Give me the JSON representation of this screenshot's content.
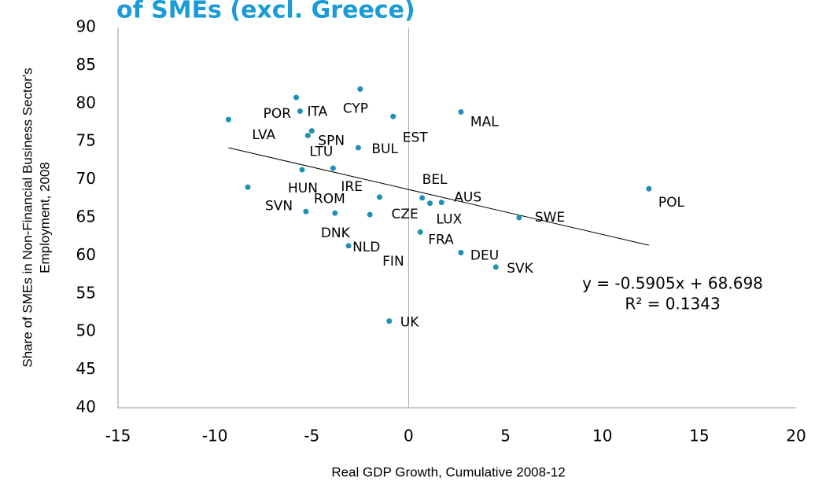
{
  "chart_data": {
    "type": "scatter",
    "title": "of SMEs (excl. Greece)",
    "x_label": "Real GDP Growth, Cumulative 2008-12",
    "y_label": [
      "Share of SMEs in Non-Financial Business Sector's",
      "Employment, 2008"
    ],
    "color": "#1f8fb3",
    "xlim": [
      -15,
      20
    ],
    "xticks": [
      -15,
      -10,
      -5,
      0,
      5,
      10,
      15,
      20
    ],
    "ylim": [
      40,
      90
    ],
    "yticks": [
      40,
      45,
      50,
      55,
      60,
      65,
      70,
      75,
      80,
      85,
      90
    ],
    "labels": [
      "LVA",
      "SVN",
      "POR",
      "ITA",
      "SPN",
      "LTU",
      "HUN",
      "IRE",
      "ROM",
      "DNK",
      "NLD",
      "FIN",
      "CYP",
      "BUL",
      "EST",
      "CZE",
      "BEL",
      "LUX",
      "AUS",
      "FRA",
      "DEU",
      "SVK",
      "SWE",
      "POL",
      "UK",
      "MAL"
    ],
    "x": [
      -9.3,
      -8.3,
      -5.8,
      -5.6,
      -5.0,
      -5.2,
      -5.5,
      -3.9,
      -5.3,
      -3.8,
      -3.1,
      -2.0,
      -2.5,
      -2.6,
      -0.8,
      -1.5,
      0.7,
      1.1,
      1.7,
      0.6,
      2.7,
      4.5,
      5.7,
      12.4,
      -1.0,
      2.7
    ],
    "y": [
      77.9,
      69.0,
      80.8,
      79.0,
      76.4,
      75.8,
      71.3,
      71.5,
      65.8,
      65.6,
      61.3,
      65.4,
      81.9,
      74.2,
      78.3,
      67.7,
      67.6,
      66.9,
      67.0,
      63.1,
      60.4,
      58.5,
      65.0,
      68.8,
      51.4,
      78.9
    ],
    "trendline": {
      "slope": -0.5905,
      "intercept": 68.698,
      "equation": "y = -0.5905x + 68.698",
      "r_squared": "R² = 0.1343"
    }
  }
}
